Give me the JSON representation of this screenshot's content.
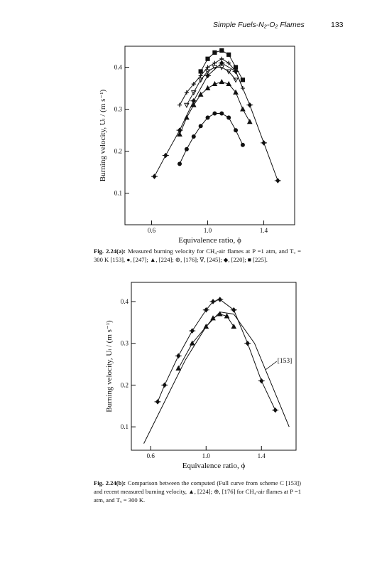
{
  "header": {
    "title": "Simple Fuels-N₂-O₂ Flames",
    "page": "133"
  },
  "figures": [
    {
      "caption_label": "Fig. 2.24(a):",
      "caption": "Measured burning velocity for CH₄-air flames at P =1 atm, and Tᵤ = 300 K [153], ●, [247]; ▲, [224]; ⊕, [176]; ∇, [245]; ◆, [220]; ■ [225].",
      "chart_data": {
        "type": "scatter",
        "xlabel": "Equivalence ratio, ϕ",
        "ylabel": "Burning velocity, Uₗ / (m s⁻¹)",
        "xlim": [
          0.41,
          1.62
        ],
        "ylim": [
          0.025,
          0.45
        ],
        "xticks": [
          0.6,
          {
            "value": 1,
            "label": "1.0"
          },
          1.4
        ],
        "yticks": [
          0.1,
          0.2,
          0.3,
          0.4
        ],
        "series": [
          {
            "marker": "circle",
            "color": "#111",
            "line": true,
            "x": [
              0.8,
              0.85,
              0.9,
              0.95,
              1.0,
              1.05,
              1.1,
              1.15,
              1.2,
              1.25
            ],
            "values": [
              0.17,
              0.205,
              0.235,
              0.26,
              0.28,
              0.29,
              0.29,
              0.28,
              0.25,
              0.215
            ]
          },
          {
            "marker": "triangle",
            "color": "#111",
            "line": true,
            "x": [
              0.8,
              0.85,
              0.9,
              0.95,
              1.0,
              1.05,
              1.1,
              1.15,
              1.2,
              1.25,
              1.3
            ],
            "values": [
              0.24,
              0.28,
              0.31,
              0.335,
              0.35,
              0.36,
              0.365,
              0.36,
              0.34,
              0.3,
              0.27
            ]
          },
          {
            "marker": "tridown",
            "color": "#111",
            "line": true,
            "x": [
              0.85,
              0.9,
              0.95,
              1.0,
              1.05,
              1.1,
              1.15,
              1.2
            ],
            "values": [
              0.31,
              0.34,
              0.37,
              0.39,
              0.4,
              0.4,
              0.39,
              0.37
            ]
          },
          {
            "marker": "cross",
            "color": "#111",
            "line": true,
            "x": [
              0.8,
              0.85,
              0.9,
              0.95,
              1.0,
              1.05,
              1.1,
              1.15,
              1.2,
              1.25
            ],
            "values": [
              0.31,
              0.34,
              0.36,
              0.38,
              0.4,
              0.41,
              0.42,
              0.41,
              0.39,
              0.35
            ]
          },
          {
            "marker": "diamond",
            "color": "#111",
            "line": true,
            "x": [
              0.62,
              0.7,
              0.8,
              0.9,
              1.0,
              1.1,
              1.2,
              1.3,
              1.4,
              1.5
            ],
            "values": [
              0.14,
              0.19,
              0.25,
              0.32,
              0.38,
              0.41,
              0.39,
              0.31,
              0.22,
              0.13
            ]
          },
          {
            "marker": "square",
            "color": "#111",
            "line": true,
            "x": [
              0.95,
              1.0,
              1.05,
              1.1,
              1.15,
              1.2,
              1.25
            ],
            "values": [
              0.39,
              0.42,
              0.435,
              0.44,
              0.43,
              0.4,
              0.37
            ]
          }
        ]
      }
    },
    {
      "caption_label": "Fig. 2.24(b):",
      "caption": "Comparison between the computed (Full curve from scheme C [153]) and recent measured burning velocity, ▲, [224]; ⊕, [176] for CH₄-air flames at P =1 atm, and Tᵤ = 300 K.",
      "chart_data": {
        "type": "scatter",
        "xlabel": "Equivalence ratio, ϕ",
        "ylabel": "Burning velocity, Uₗ / (m s⁻¹)",
        "xlim": [
          0.46,
          1.65
        ],
        "ylim": [
          0.044,
          0.446
        ],
        "xticks": [
          0.6,
          {
            "value": 1,
            "label": "1.0"
          },
          1.4
        ],
        "yticks": [
          0.1,
          0.2,
          0.3,
          0.4
        ],
        "annotation": {
          "text": "[153]",
          "x": 1.5,
          "y": 0.25
        },
        "series": [
          {
            "marker": "none",
            "color": "#111",
            "line": true,
            "x": [
              0.55,
              0.7,
              0.85,
              1.0,
              1.1,
              1.2,
              1.35,
              1.5,
              1.6
            ],
            "values": [
              0.06,
              0.16,
              0.26,
              0.34,
              0.375,
              0.37,
              0.3,
              0.18,
              0.1
            ]
          },
          {
            "marker": "triangle",
            "color": "#111",
            "line": true,
            "x": [
              0.8,
              0.9,
              1.0,
              1.05,
              1.1,
              1.15,
              1.2
            ],
            "values": [
              0.24,
              0.3,
              0.34,
              0.36,
              0.37,
              0.365,
              0.34
            ]
          },
          {
            "marker": "diamond",
            "color": "#111",
            "line": true,
            "x": [
              0.65,
              0.7,
              0.8,
              0.9,
              1.0,
              1.05,
              1.1,
              1.2,
              1.3,
              1.4,
              1.5
            ],
            "values": [
              0.16,
              0.2,
              0.27,
              0.33,
              0.38,
              0.4,
              0.405,
              0.38,
              0.3,
              0.21,
              0.14
            ]
          }
        ]
      }
    }
  ]
}
